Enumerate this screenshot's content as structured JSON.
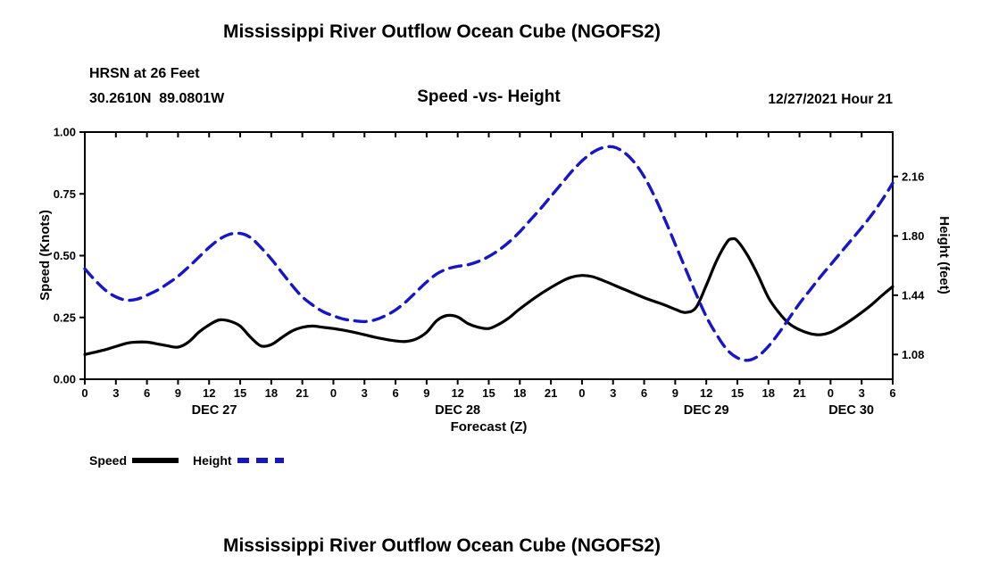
{
  "page": {
    "top_title": "Mississippi River Outflow Ocean Cube (NGOFS2)",
    "bottom_title": "Mississippi River Outflow Ocean Cube (NGOFS2)"
  },
  "header": {
    "station": "HRSN at 26 Feet",
    "coordinates": "30.2610N  89.0801W",
    "subtitle": "Speed -vs- Height",
    "datetime": "12/27/2021 Hour 21"
  },
  "legend": [
    {
      "label": "Speed",
      "color": "#000000",
      "dash": ""
    },
    {
      "label": "Height",
      "color": "#1616c8",
      "dash": "13 8"
    }
  ],
  "chart_data": {
    "type": "line",
    "title": "Speed -vs- Height",
    "xlabel": "Forecast (Z)",
    "ylabel_left": "Speed (Knots)",
    "ylabel_right": "Height (feet)",
    "x_unit": "hours from DEC 27 00Z to DEC 30 06Z",
    "xlim": [
      0,
      78
    ],
    "ylim_left": [
      0.0,
      1.0
    ],
    "right_axis_range": [
      0.93,
      2.43
    ],
    "grid": false,
    "left_ticks": [
      {
        "value": 0.0,
        "label": "0.00"
      },
      {
        "value": 0.25,
        "label": "0.25"
      },
      {
        "value": 0.5,
        "label": "0.50"
      },
      {
        "value": 0.75,
        "label": "0.75"
      },
      {
        "value": 1.0,
        "label": "1.00"
      }
    ],
    "right_ticks": [
      {
        "value": 1.08,
        "label": "1.08"
      },
      {
        "value": 1.44,
        "label": "1.44"
      },
      {
        "value": 1.8,
        "label": "1.80"
      },
      {
        "value": 2.16,
        "label": "2.16"
      }
    ],
    "x_tick_hours": [
      0,
      3,
      6,
      9,
      12,
      15,
      18,
      21,
      24,
      27,
      30,
      33,
      36,
      39,
      42,
      45,
      48,
      51,
      54,
      57,
      60,
      63,
      66,
      69,
      72,
      75,
      78
    ],
    "x_tick_labels": [
      "0",
      "3",
      "6",
      "9",
      "12",
      "15",
      "18",
      "21",
      "0",
      "3",
      "6",
      "9",
      "12",
      "15",
      "18",
      "21",
      "0",
      "3",
      "6",
      "9",
      "12",
      "15",
      "18",
      "21",
      "0",
      "3",
      "6"
    ],
    "day_labels": [
      {
        "hour": 12.5,
        "label": "DEC 27"
      },
      {
        "hour": 36,
        "label": "DEC 28"
      },
      {
        "hour": 60,
        "label": "DEC 29"
      },
      {
        "hour": 74,
        "label": "DEC 30"
      }
    ],
    "series": [
      {
        "name": "Speed",
        "axis": "left",
        "units": "knots",
        "color": "#000000",
        "style": "solid",
        "points": [
          [
            0,
            0.1
          ],
          [
            2,
            0.12
          ],
          [
            4,
            0.145
          ],
          [
            5,
            0.15
          ],
          [
            6,
            0.15
          ],
          [
            7,
            0.143
          ],
          [
            8,
            0.135
          ],
          [
            9,
            0.13
          ],
          [
            10,
            0.15
          ],
          [
            11,
            0.19
          ],
          [
            12,
            0.22
          ],
          [
            13,
            0.24
          ],
          [
            14,
            0.235
          ],
          [
            15,
            0.215
          ],
          [
            16,
            0.17
          ],
          [
            17,
            0.135
          ],
          [
            18,
            0.14
          ],
          [
            19,
            0.168
          ],
          [
            20,
            0.195
          ],
          [
            21,
            0.21
          ],
          [
            22,
            0.215
          ],
          [
            23,
            0.21
          ],
          [
            24,
            0.205
          ],
          [
            26,
            0.19
          ],
          [
            28,
            0.17
          ],
          [
            30,
            0.155
          ],
          [
            31,
            0.153
          ],
          [
            32,
            0.163
          ],
          [
            33,
            0.19
          ],
          [
            34,
            0.238
          ],
          [
            35,
            0.258
          ],
          [
            36,
            0.252
          ],
          [
            37,
            0.225
          ],
          [
            38,
            0.21
          ],
          [
            39,
            0.205
          ],
          [
            40,
            0.223
          ],
          [
            41,
            0.25
          ],
          [
            42,
            0.285
          ],
          [
            44,
            0.345
          ],
          [
            46,
            0.395
          ],
          [
            47,
            0.413
          ],
          [
            48,
            0.42
          ],
          [
            49,
            0.415
          ],
          [
            50,
            0.4
          ],
          [
            52,
            0.365
          ],
          [
            54,
            0.33
          ],
          [
            56,
            0.3
          ],
          [
            57,
            0.283
          ],
          [
            58,
            0.27
          ],
          [
            59,
            0.29
          ],
          [
            60,
            0.38
          ],
          [
            61,
            0.48
          ],
          [
            62,
            0.555
          ],
          [
            62.5,
            0.568
          ],
          [
            63,
            0.56
          ],
          [
            64,
            0.5
          ],
          [
            65,
            0.42
          ],
          [
            66,
            0.33
          ],
          [
            67,
            0.27
          ],
          [
            68,
            0.225
          ],
          [
            69,
            0.2
          ],
          [
            70,
            0.185
          ],
          [
            71,
            0.18
          ],
          [
            72,
            0.19
          ],
          [
            73,
            0.213
          ],
          [
            74,
            0.24
          ],
          [
            75,
            0.27
          ],
          [
            76,
            0.303
          ],
          [
            77,
            0.34
          ],
          [
            78,
            0.375
          ]
        ]
      },
      {
        "name": "Height",
        "axis": "right",
        "units": "feet",
        "color": "#1616c8",
        "style": "dashed",
        "points": [
          [
            0,
            1.6
          ],
          [
            1,
            1.53
          ],
          [
            2,
            1.47
          ],
          [
            3,
            1.43
          ],
          [
            4,
            1.41
          ],
          [
            5,
            1.415
          ],
          [
            6,
            1.44
          ],
          [
            7,
            1.47
          ],
          [
            8,
            1.51
          ],
          [
            9,
            1.555
          ],
          [
            10,
            1.61
          ],
          [
            11,
            1.67
          ],
          [
            12,
            1.73
          ],
          [
            13,
            1.78
          ],
          [
            14,
            1.81
          ],
          [
            15,
            1.815
          ],
          [
            16,
            1.79
          ],
          [
            17,
            1.73
          ],
          [
            18,
            1.66
          ],
          [
            19,
            1.58
          ],
          [
            20,
            1.5
          ],
          [
            21,
            1.43
          ],
          [
            22,
            1.38
          ],
          [
            23,
            1.34
          ],
          [
            24,
            1.315
          ],
          [
            25,
            1.295
          ],
          [
            26,
            1.285
          ],
          [
            27,
            1.28
          ],
          [
            28,
            1.29
          ],
          [
            29,
            1.315
          ],
          [
            30,
            1.35
          ],
          [
            31,
            1.4
          ],
          [
            32,
            1.46
          ],
          [
            33,
            1.52
          ],
          [
            34,
            1.57
          ],
          [
            35,
            1.6
          ],
          [
            36,
            1.615
          ],
          [
            37,
            1.625
          ],
          [
            38,
            1.645
          ],
          [
            39,
            1.675
          ],
          [
            40,
            1.715
          ],
          [
            41,
            1.765
          ],
          [
            42,
            1.825
          ],
          [
            43,
            1.895
          ],
          [
            44,
            1.965
          ],
          [
            45,
            2.04
          ],
          [
            46,
            2.115
          ],
          [
            47,
            2.19
          ],
          [
            48,
            2.255
          ],
          [
            49,
            2.305
          ],
          [
            50,
            2.335
          ],
          [
            51,
            2.34
          ],
          [
            52,
            2.31
          ],
          [
            53,
            2.25
          ],
          [
            54,
            2.16
          ],
          [
            55,
            2.04
          ],
          [
            56,
            1.9
          ],
          [
            57,
            1.75
          ],
          [
            58,
            1.6
          ],
          [
            59,
            1.45
          ],
          [
            60,
            1.31
          ],
          [
            61,
            1.2
          ],
          [
            62,
            1.11
          ],
          [
            63,
            1.06
          ],
          [
            64,
            1.045
          ],
          [
            65,
            1.07
          ],
          [
            66,
            1.13
          ],
          [
            67,
            1.21
          ],
          [
            68,
            1.3
          ],
          [
            69,
            1.39
          ],
          [
            70,
            1.47
          ],
          [
            71,
            1.55
          ],
          [
            72,
            1.625
          ],
          [
            73,
            1.7
          ],
          [
            74,
            1.775
          ],
          [
            75,
            1.85
          ],
          [
            76,
            1.93
          ],
          [
            77,
            2.02
          ],
          [
            78,
            2.12
          ]
        ]
      }
    ]
  }
}
